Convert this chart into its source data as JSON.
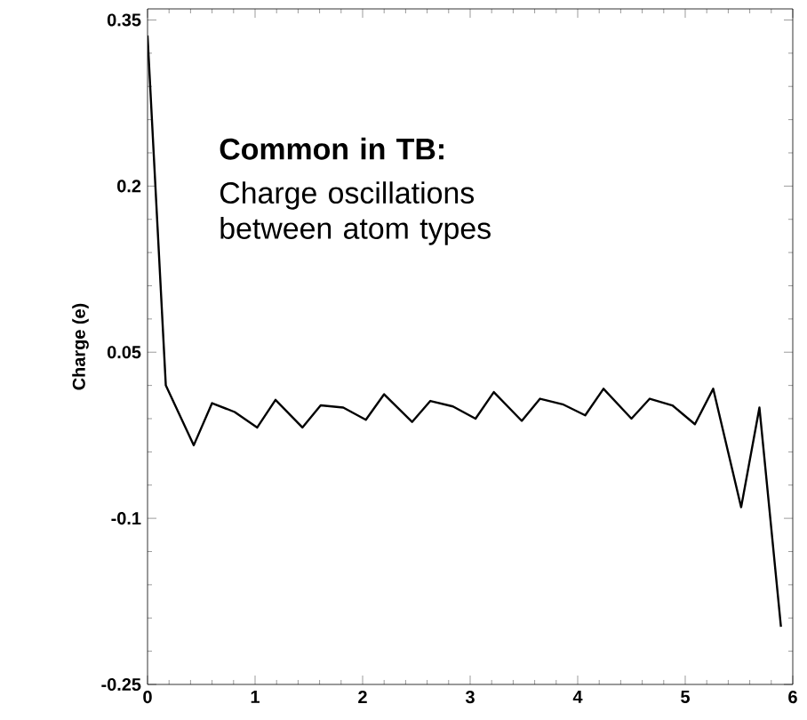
{
  "chart_data": {
    "type": "line",
    "ylabel": "Charge (e)",
    "annotations": [
      "Common in TB:",
      "Charge oscillations between atom types"
    ],
    "x": [
      0,
      0.17,
      0.43,
      0.6,
      0.81,
      1.02,
      1.19,
      1.44,
      1.61,
      1.82,
      2.03,
      2.2,
      2.46,
      2.63,
      2.84,
      3.05,
      3.22,
      3.48,
      3.65,
      3.86,
      4.07,
      4.24,
      4.5,
      4.67,
      4.88,
      5.09,
      5.26,
      5.52,
      5.69,
      5.89
    ],
    "values": [
      0.336,
      0.02,
      -0.034,
      0.004,
      -0.004,
      -0.018,
      0.007,
      -0.018,
      0.002,
      0,
      -0.011,
      0.012,
      -0.013,
      0.006,
      0.001,
      -0.01,
      0.014,
      -0.012,
      0.008,
      0.003,
      -0.007,
      0.017,
      -0.01,
      0.008,
      0.002,
      -0.015,
      0.017,
      -0.09,
      0,
      -0.198
    ],
    "color": "#000000",
    "line_style": "solid",
    "marker": "none",
    "grid": false,
    "xlim": [
      0,
      6
    ],
    "ylim": [
      -0.25,
      0.36
    ],
    "xticks": [
      0,
      1,
      2,
      3,
      4,
      5,
      6
    ],
    "yticks": [
      -0.25,
      -0.1,
      0.05,
      0.2,
      0.35
    ]
  }
}
